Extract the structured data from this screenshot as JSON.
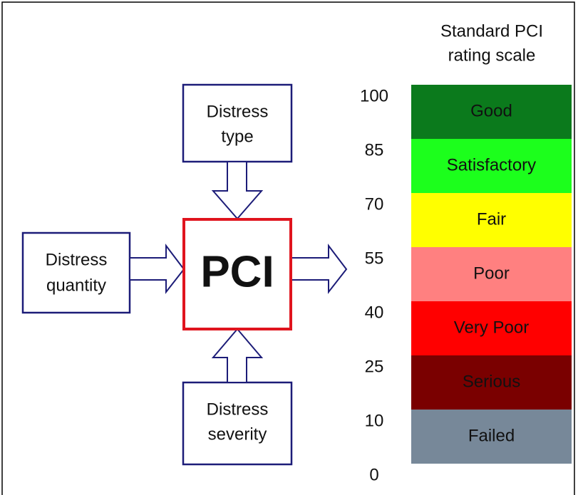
{
  "diagram": {
    "inputs": {
      "top": {
        "lines": [
          "Distress",
          "type"
        ]
      },
      "left": {
        "lines": [
          "Distress",
          "quantity"
        ]
      },
      "bottom": {
        "lines": [
          "Distress",
          "severity"
        ]
      }
    },
    "center": "PCI",
    "scale": {
      "title": [
        "Standard PCI",
        "rating scale"
      ],
      "ticks": [
        "100",
        "85",
        "70",
        "55",
        "40",
        "25",
        "10",
        "0"
      ],
      "bands": [
        {
          "label": "Good",
          "color": "#0b7a1c",
          "text_color": "#ffffff"
        },
        {
          "label": "Satisfactory",
          "color": "#1cff1c",
          "text_color": "#1a1a1a"
        },
        {
          "label": "Fair",
          "color": "#ffff00",
          "text_color": "#1a1a1a"
        },
        {
          "label": "Poor",
          "color": "#ff8080",
          "text_color": "#1a1a1a"
        },
        {
          "label": "Very Poor",
          "color": "#ff0000",
          "text_color": "#8a0000"
        },
        {
          "label": "Serious",
          "color": "#7a0000",
          "text_color": "#a00000"
        },
        {
          "label": "Failed",
          "color": "#778899",
          "text_color": "#ffffff"
        }
      ]
    }
  }
}
